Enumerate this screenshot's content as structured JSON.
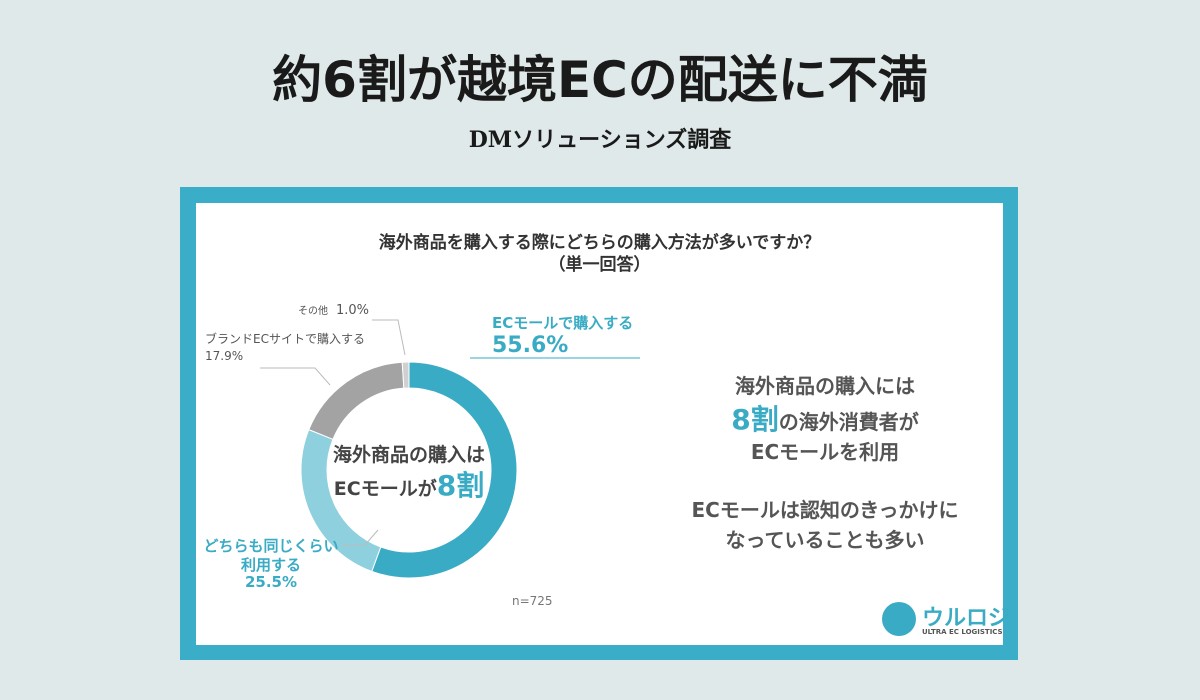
{
  "title": "約6割が越境ECの配送に不満",
  "subtitle": "DMソリューションズ調査",
  "chart_data": {
    "type": "donut",
    "title": "海外商品を購入する際にどちらの購入方法が多いですか？",
    "subtitle": "（単一回答）",
    "categories": [
      "ECモールで購入する",
      "どちらも同じくらい\n利用する",
      "ブランドECサイトで購入する",
      "その他"
    ],
    "series": [
      {
        "values": [
          55.6,
          25.5,
          17.9,
          1.0
        ],
        "value_labels": [
          "55.6%",
          "25.5%",
          "17.9%",
          "1.0%"
        ],
        "colors": [
          "#3aabc4",
          "#8fd0de",
          "#a3a3a3",
          "#d0d0d0"
        ]
      }
    ],
    "center_text": {
      "line1": "海外商品の購入は",
      "line2": "ECモールが",
      "highlight": "8割"
    },
    "note": "n=725",
    "side_text": {
      "line1": "海外商品の購入には",
      "highlight": "8割",
      "line2": "の海外消費者が",
      "line3": "ECモールを利用",
      "line4": "ECモールは認知のきっかけに",
      "line5": "なっていることも多い"
    }
  },
  "logo": {
    "name": "ウルロジ",
    "tagline": "ULTRA EC LOGISTICS"
  }
}
